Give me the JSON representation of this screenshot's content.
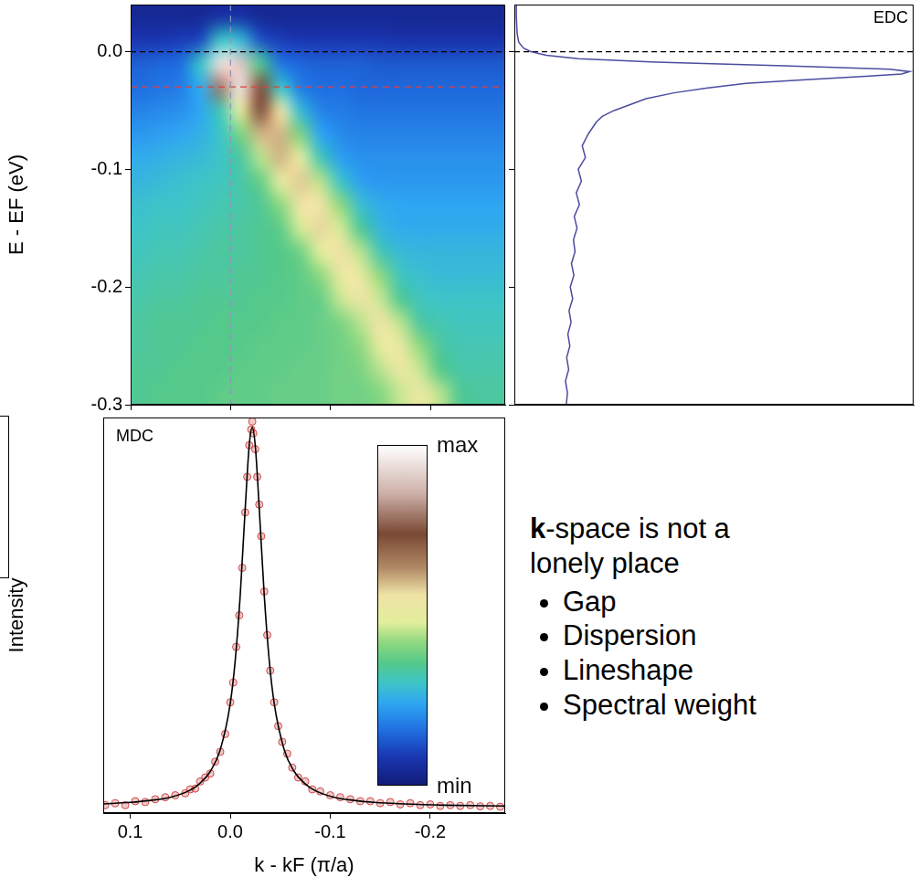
{
  "chart_data": [
    {
      "type": "heatmap",
      "y_label": "E - EF (eV)",
      "x_edges": [
        0.1,
        0.08,
        0.06,
        0.04,
        0.02,
        0,
        -0.02,
        -0.04,
        -0.06,
        -0.08,
        -0.1,
        -0.12,
        -0.14,
        -0.16,
        -0.18,
        -0.2,
        -0.22,
        -0.24,
        -0.26,
        -0.28
      ],
      "y_edges": [
        0.04,
        0.02,
        0,
        -0.02,
        -0.04,
        -0.06,
        -0.08,
        -0.1,
        -0.12,
        -0.14,
        -0.16,
        -0.18,
        -0.2,
        -0.22,
        -0.24,
        -0.26,
        -0.28,
        -0.3
      ],
      "cells": [
        [
          0.04,
          0.04,
          0.04,
          0.04,
          0.06,
          0.06,
          0.04,
          0.04,
          0.04,
          0.04,
          0.04,
          0.04,
          0.04,
          0.04,
          0.04,
          0.04,
          0.04,
          0.04,
          0.04
        ],
        [
          0.08,
          0.08,
          0.09,
          0.11,
          0.3,
          0.28,
          0.12,
          0.09,
          0.08,
          0.08,
          0.08,
          0.08,
          0.08,
          0.07,
          0.07,
          0.07,
          0.07,
          0.07,
          0.07
        ],
        [
          0.14,
          0.15,
          0.16,
          0.3,
          0.95,
          0.9,
          0.35,
          0.17,
          0.15,
          0.14,
          0.14,
          0.14,
          0.13,
          0.13,
          0.13,
          0.13,
          0.13,
          0.13,
          0.13
        ],
        [
          0.16,
          0.17,
          0.18,
          0.25,
          0.8,
          0.95,
          0.75,
          0.3,
          0.18,
          0.16,
          0.16,
          0.15,
          0.15,
          0.15,
          0.15,
          0.15,
          0.15,
          0.15,
          0.15
        ],
        [
          0.19,
          0.2,
          0.21,
          0.24,
          0.32,
          0.5,
          0.75,
          0.55,
          0.28,
          0.19,
          0.18,
          0.17,
          0.17,
          0.17,
          0.17,
          0.17,
          0.17,
          0.17,
          0.17
        ],
        [
          0.22,
          0.23,
          0.24,
          0.26,
          0.3,
          0.4,
          0.6,
          0.6,
          0.4,
          0.24,
          0.2,
          0.19,
          0.19,
          0.19,
          0.19,
          0.19,
          0.19,
          0.19,
          0.19
        ],
        [
          0.25,
          0.26,
          0.27,
          0.28,
          0.3,
          0.34,
          0.45,
          0.6,
          0.5,
          0.32,
          0.23,
          0.21,
          0.21,
          0.21,
          0.21,
          0.21,
          0.21,
          0.21,
          0.21
        ],
        [
          0.27,
          0.28,
          0.29,
          0.3,
          0.31,
          0.33,
          0.38,
          0.5,
          0.58,
          0.45,
          0.3,
          0.23,
          0.22,
          0.22,
          0.22,
          0.22,
          0.22,
          0.22,
          0.22
        ],
        [
          0.29,
          0.3,
          0.3,
          0.31,
          0.32,
          0.33,
          0.35,
          0.42,
          0.55,
          0.55,
          0.42,
          0.29,
          0.25,
          0.24,
          0.24,
          0.24,
          0.24,
          0.24,
          0.24
        ],
        [
          0.3,
          0.31,
          0.31,
          0.32,
          0.33,
          0.34,
          0.35,
          0.37,
          0.47,
          0.57,
          0.47,
          0.35,
          0.27,
          0.25,
          0.25,
          0.25,
          0.25,
          0.25,
          0.25
        ],
        [
          0.31,
          0.32,
          0.32,
          0.33,
          0.34,
          0.34,
          0.35,
          0.36,
          0.39,
          0.48,
          0.56,
          0.45,
          0.32,
          0.28,
          0.27,
          0.27,
          0.27,
          0.27,
          0.27
        ],
        [
          0.32,
          0.33,
          0.33,
          0.34,
          0.34,
          0.35,
          0.35,
          0.36,
          0.37,
          0.42,
          0.52,
          0.52,
          0.42,
          0.31,
          0.29,
          0.28,
          0.28,
          0.28,
          0.28
        ],
        [
          0.33,
          0.34,
          0.34,
          0.35,
          0.35,
          0.35,
          0.36,
          0.36,
          0.37,
          0.38,
          0.46,
          0.55,
          0.46,
          0.35,
          0.31,
          0.3,
          0.3,
          0.3,
          0.3
        ],
        [
          0.34,
          0.35,
          0.35,
          0.35,
          0.36,
          0.36,
          0.36,
          0.37,
          0.37,
          0.38,
          0.4,
          0.45,
          0.55,
          0.45,
          0.34,
          0.32,
          0.31,
          0.31,
          0.31
        ],
        [
          0.34,
          0.35,
          0.35,
          0.36,
          0.36,
          0.36,
          0.37,
          0.37,
          0.37,
          0.38,
          0.39,
          0.42,
          0.5,
          0.52,
          0.42,
          0.34,
          0.32,
          0.32,
          0.32
        ],
        [
          0.35,
          0.35,
          0.36,
          0.36,
          0.36,
          0.37,
          0.37,
          0.37,
          0.38,
          0.38,
          0.39,
          0.4,
          0.45,
          0.53,
          0.46,
          0.36,
          0.33,
          0.33,
          0.33
        ],
        [
          0.35,
          0.36,
          0.36,
          0.36,
          0.37,
          0.37,
          0.37,
          0.38,
          0.38,
          0.38,
          0.39,
          0.39,
          0.41,
          0.46,
          0.53,
          0.45,
          0.35,
          0.34,
          0.34
        ]
      ],
      "xlim": [
        0.1,
        -0.275
      ],
      "ylim": [
        -0.3,
        0.04
      ],
      "xticks": [
        0.1,
        {
          "value": 0,
          "label": "0.0"
        },
        -0.1,
        -0.2
      ],
      "yticks": [
        {
          "value": 0,
          "label": "0.0"
        },
        -0.1,
        -0.2,
        -0.3
      ],
      "tick_labels": "y",
      "colorbar": {
        "range": [
          0,
          1
        ],
        "ticks": [
          {
            "value": 0,
            "label": "min"
          },
          {
            "value": 1,
            "label": "max"
          }
        ]
      },
      "fermi_level": 0,
      "edc_cut_k": 0,
      "mdc_cut_E": -0.03
    },
    {
      "type": "line",
      "title": "EDC",
      "x": [
        0.005,
        0.005,
        0.007,
        0.011,
        0.023,
        0.041,
        0.08,
        0.16,
        0.355,
        0.675,
        0.94,
        0.99,
        0.97,
        0.88,
        0.72,
        0.58,
        0.48,
        0.4,
        0.33,
        0.29,
        0.25,
        0.22,
        0.205,
        0.185,
        0.17,
        0.178,
        0.16,
        0.168,
        0.155,
        0.163,
        0.15,
        0.157,
        0.148,
        0.152,
        0.143,
        0.149,
        0.14,
        0.146,
        0.137,
        0.142,
        0.134,
        0.139,
        0.131,
        0.136,
        0.128,
        0.133,
        0.13
      ],
      "y": [
        0.04,
        0.03,
        0.015,
        0.008,
        0.003,
        0,
        -0.003,
        -0.006,
        -0.009,
        -0.012,
        -0.015,
        -0.017,
        -0.019,
        -0.021,
        -0.024,
        -0.027,
        -0.031,
        -0.035,
        -0.04,
        -0.045,
        -0.05,
        -0.055,
        -0.06,
        -0.07,
        -0.08,
        -0.09,
        -0.1,
        -0.11,
        -0.12,
        -0.13,
        -0.14,
        -0.15,
        -0.16,
        -0.17,
        -0.18,
        -0.19,
        -0.2,
        -0.21,
        -0.22,
        -0.23,
        -0.24,
        -0.25,
        -0.26,
        -0.27,
        -0.28,
        -0.29,
        -0.3
      ],
      "color": "#4b4c9e",
      "xlim": [
        0,
        1
      ],
      "ylim": [
        -0.3,
        0.04
      ],
      "yticks": [
        0,
        -0.1,
        -0.2,
        -0.3
      ],
      "tick_labels": false,
      "fermi_level": 0
    },
    {
      "type": "scatter",
      "title": "MDC",
      "x_label": "k - kF (π/a)",
      "y_label": "Intensity",
      "x": [
        0.125,
        0.115,
        0.105,
        0.095,
        0.085,
        0.075,
        0.065,
        0.055,
        0.045,
        0.04,
        0.035,
        0.03,
        0.025,
        0.02,
        0.015,
        0.01,
        0.005,
        0,
        -0.003,
        -0.006,
        -0.009,
        -0.012,
        -0.015,
        -0.017,
        -0.019,
        -0.021,
        -0.022,
        -0.023,
        -0.025,
        -0.027,
        -0.029,
        -0.031,
        -0.034,
        -0.037,
        -0.04,
        -0.044,
        -0.048,
        -0.052,
        -0.057,
        -0.062,
        -0.068,
        -0.075,
        -0.082,
        -0.09,
        -0.1,
        -0.11,
        -0.12,
        -0.13,
        -0.14,
        -0.15,
        -0.16,
        -0.17,
        -0.18,
        -0.19,
        -0.2,
        -0.21,
        -0.22,
        -0.23,
        -0.24,
        -0.25,
        -0.26,
        -0.27
      ],
      "values": [
        0.02,
        0.025,
        0.02,
        0.03,
        0.028,
        0.035,
        0.04,
        0.045,
        0.05,
        0.06,
        0.062,
        0.08,
        0.09,
        0.1,
        0.13,
        0.155,
        0.2,
        0.28,
        0.33,
        0.42,
        0.5,
        0.62,
        0.76,
        0.85,
        0.93,
        0.97,
        0.99,
        0.96,
        0.92,
        0.85,
        0.78,
        0.7,
        0.56,
        0.45,
        0.36,
        0.28,
        0.22,
        0.18,
        0.15,
        0.115,
        0.09,
        0.08,
        0.06,
        0.055,
        0.045,
        0.04,
        0.035,
        0.03,
        0.03,
        0.025,
        0.028,
        0.022,
        0.025,
        0.02,
        0.022,
        0.018,
        0.02,
        0.018,
        0.02,
        0.017,
        0.018,
        0.016
      ],
      "color": "#d04848",
      "marker": "circle",
      "fit": {
        "type": "line",
        "color": "#000000",
        "x": [
          0.127,
          0.1,
          0.08,
          0.06,
          0.04,
          0.03,
          0.02,
          0.01,
          0,
          -0.005,
          -0.01,
          -0.015,
          -0.019,
          -0.022,
          -0.025,
          -0.029,
          -0.034,
          -0.039,
          -0.044,
          -0.054,
          -0.064,
          -0.074,
          -0.084,
          -0.104,
          -0.124,
          -0.144,
          -0.174,
          -0.214,
          -0.275
        ],
        "values": [
          0.023,
          0.027,
          0.032,
          0.04,
          0.058,
          0.076,
          0.105,
          0.16,
          0.277,
          0.386,
          0.551,
          0.771,
          0.93,
          0.975,
          0.93,
          0.771,
          0.551,
          0.386,
          0.277,
          0.16,
          0.105,
          0.076,
          0.058,
          0.04,
          0.032,
          0.027,
          0.023,
          0.02,
          0.018
        ]
      },
      "xlim": [
        0.127,
        -0.275
      ],
      "ylim": [
        0,
        1
      ],
      "xticks": [
        0.1,
        {
          "value": 0,
          "label": "0.0"
        },
        -0.1,
        -0.2
      ],
      "tick_labels": "x"
    }
  ],
  "text_panel": {
    "heading": {
      "bold": "k",
      "rest": "-space is not a lonely place"
    },
    "bullets": [
      "Gap",
      "Dispersion",
      "Lineshape",
      "Spectral weight"
    ]
  }
}
